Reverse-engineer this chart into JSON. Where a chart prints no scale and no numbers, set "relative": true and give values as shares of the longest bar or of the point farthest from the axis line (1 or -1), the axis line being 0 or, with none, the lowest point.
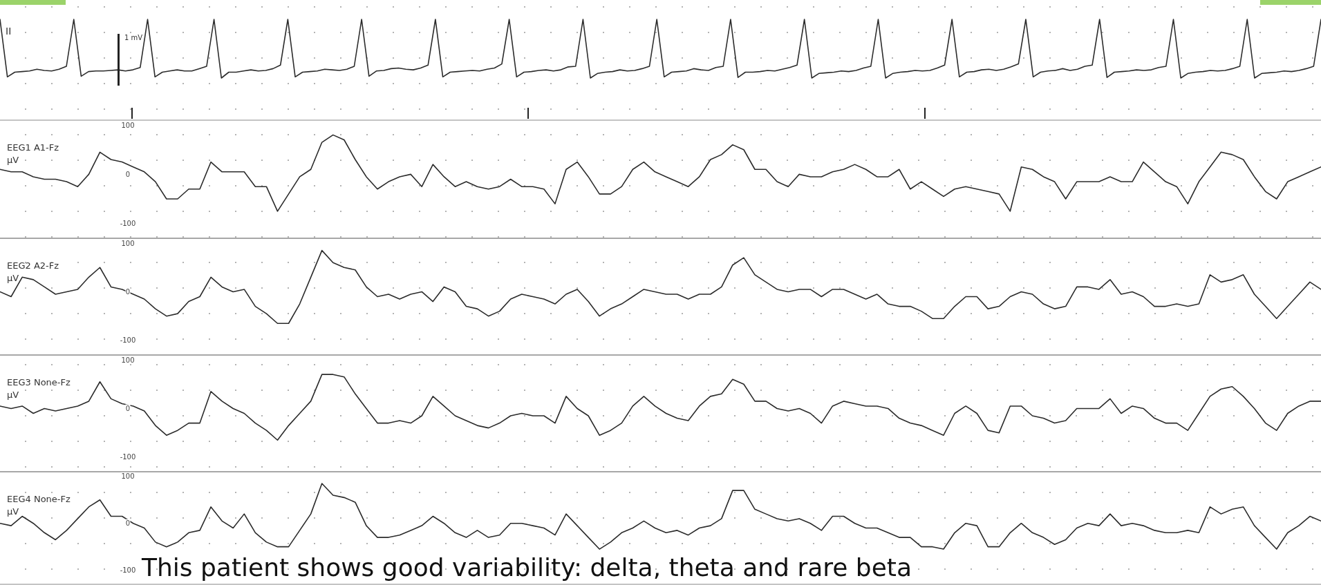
{
  "chart_data": [
    {
      "type": "line",
      "title": "II",
      "relative": true,
      "tick_labels": false,
      "color": "#2b2b2b",
      "annotations": [
        "1 mV"
      ],
      "categories": [
        null,
        null,
        null,
        null,
        null,
        null,
        null,
        null,
        null,
        null,
        null,
        null,
        null,
        null,
        null,
        null,
        null,
        null,
        null,
        null,
        null,
        null,
        null,
        null,
        null,
        null,
        null,
        null,
        null,
        null,
        null,
        null,
        null,
        null,
        null,
        null,
        null,
        null,
        null,
        null,
        null,
        null,
        null,
        null,
        null,
        null,
        null,
        null,
        null,
        null,
        null,
        null,
        null,
        null,
        null,
        null,
        null,
        null,
        null,
        null,
        null,
        null,
        null,
        null,
        null,
        null,
        null,
        null,
        null,
        null,
        null,
        null,
        null,
        null,
        null,
        null,
        null,
        null,
        null,
        null,
        null,
        null,
        null,
        null,
        null,
        null,
        null,
        null,
        null,
        null,
        null,
        null,
        null,
        null,
        null,
        null,
        null,
        null,
        null,
        null,
        null,
        null,
        null,
        null,
        null,
        null,
        null,
        null,
        null,
        null,
        null,
        null,
        null,
        null,
        null,
        null,
        null,
        null,
        null,
        null,
        null,
        null,
        null,
        null,
        null,
        null,
        null,
        null,
        null,
        null,
        null,
        null,
        null,
        null,
        null,
        null,
        null,
        null,
        null,
        null,
        null,
        null,
        null,
        null,
        null,
        null,
        null,
        null,
        null,
        null,
        null,
        null,
        null,
        null,
        null,
        null,
        null,
        null,
        null,
        null,
        null,
        null,
        null,
        null,
        null,
        null,
        null,
        null,
        null,
        null,
        null,
        null,
        null,
        null,
        null,
        null,
        null,
        null,
        null,
        null
      ],
      "values": [
        1,
        0.02,
        0.1,
        0.11,
        0.12,
        0.15,
        0.13,
        0.12,
        0.15,
        0.2,
        1,
        0.03,
        0.11,
        0.12,
        0.12,
        0.13,
        0.14,
        0.12,
        0.14,
        0.18,
        1,
        0.02,
        0.1,
        0.12,
        0.14,
        0.12,
        0.12,
        0.16,
        0.2,
        1,
        0,
        0.1,
        0.1,
        0.12,
        0.14,
        0.12,
        0.13,
        0.16,
        0.22,
        1,
        0.02,
        0.1,
        0.11,
        0.12,
        0.15,
        0.14,
        0.13,
        0.15,
        0.2,
        1,
        0.03,
        0.12,
        0.13,
        0.16,
        0.17,
        0.15,
        0.14,
        0.17,
        0.22,
        1,
        0.02,
        0.1,
        0.11,
        0.12,
        0.13,
        0.12,
        0.15,
        0.17,
        0.24,
        1,
        0.02,
        0.1,
        0.11,
        0.13,
        0.14,
        0.12,
        0.14,
        0.19,
        0.2,
        1,
        0,
        0.08,
        0.1,
        0.11,
        0.14,
        0.12,
        0.13,
        0.16,
        0.2,
        1,
        0.02,
        0.1,
        0.11,
        0.12,
        0.16,
        0.14,
        0.13,
        0.18,
        0.2,
        1,
        0.01,
        0.1,
        0.1,
        0.11,
        0.13,
        0.12,
        0.15,
        0.18,
        0.22,
        1,
        0,
        0.08,
        0.09,
        0.1,
        0.12,
        0.11,
        0.13,
        0.17,
        0.2,
        1,
        0,
        0.08,
        0.1,
        0.11,
        0.13,
        0.12,
        0.13,
        0.17,
        0.22,
        1,
        0.02,
        0.1,
        0.11,
        0.14,
        0.15,
        0.13,
        0.15,
        0.19,
        0.24,
        1,
        0.02,
        0.1,
        0.12,
        0.13,
        0.16,
        0.13,
        0.15,
        0.2,
        0.22,
        1,
        0.01,
        0.1,
        0.11,
        0.12,
        0.14,
        0.13,
        0.14,
        0.18,
        0.2,
        1,
        0,
        0.08,
        0.1,
        0.11,
        0.13,
        0.12,
        0.13,
        0.16,
        0.2,
        1,
        0,
        0.08,
        0.09,
        0.1,
        0.12,
        0.11,
        0.13,
        0.16,
        0.2,
        1
      ]
    },
    {
      "type": "line",
      "title": "EEG1 A1-Fz",
      "ylabel": "µV",
      "ylim": [
        -130,
        110
      ],
      "yticks": [
        100,
        0,
        -100
      ],
      "tick_labels": "y",
      "color": "#2b2b2b",
      "categories": [
        null,
        null,
        null,
        null,
        null,
        null,
        null,
        null,
        null,
        null,
        null,
        null,
        null,
        null,
        null,
        null,
        null,
        null,
        null,
        null,
        null,
        null,
        null,
        null,
        null,
        null,
        null,
        null,
        null,
        null,
        null,
        null,
        null,
        null,
        null,
        null,
        null,
        null,
        null,
        null,
        null,
        null,
        null,
        null,
        null,
        null,
        null,
        null,
        null,
        null,
        null,
        null,
        null,
        null,
        null,
        null,
        null,
        null,
        null,
        null,
        null,
        null,
        null,
        null,
        null,
        null,
        null,
        null,
        null,
        null,
        null,
        null,
        null,
        null,
        null,
        null,
        null,
        null,
        null,
        null,
        null,
        null,
        null,
        null,
        null,
        null,
        null,
        null,
        null,
        null,
        null,
        null,
        null,
        null,
        null,
        null,
        null,
        null,
        null,
        null,
        null,
        null,
        null,
        null,
        null,
        null,
        null,
        null,
        null,
        null,
        null,
        null,
        null,
        null,
        null,
        null,
        null,
        null,
        null,
        null
      ],
      "values": [
        10,
        5,
        5,
        -5,
        -10,
        -10,
        -15,
        -25,
        0,
        45,
        30,
        25,
        15,
        5,
        -15,
        -50,
        -50,
        -30,
        -30,
        25,
        5,
        5,
        5,
        -25,
        -25,
        -75,
        -40,
        -5,
        10,
        65,
        80,
        70,
        30,
        -5,
        -30,
        -15,
        -5,
        0,
        -25,
        20,
        -5,
        -25,
        -15,
        -25,
        -30,
        -25,
        -10,
        -25,
        -25,
        -30,
        -60,
        10,
        25,
        -5,
        -40,
        -40,
        -25,
        10,
        25,
        5,
        -5,
        -15,
        -25,
        -5,
        30,
        40,
        60,
        50,
        10,
        10,
        -15,
        -25,
        0,
        -5,
        -5,
        5,
        10,
        20,
        10,
        -5,
        -5,
        10,
        -30,
        -15,
        -30,
        -45,
        -30,
        -25,
        -30,
        -35,
        -40,
        -75,
        15,
        10,
        -5,
        -15,
        -50,
        -15,
        -15,
        -15,
        -5,
        -15,
        -15,
        25,
        5,
        -15,
        -25,
        -60,
        -15,
        15,
        45,
        40,
        30,
        -5,
        -35,
        -50,
        -15,
        -5,
        5,
        15
      ]
    },
    {
      "type": "line",
      "title": "EEG2 A2-Fz",
      "ylabel": "µV",
      "ylim": [
        -130,
        110
      ],
      "yticks": [
        100,
        0,
        -100
      ],
      "tick_labels": "y",
      "color": "#2b2b2b",
      "categories": [
        null,
        null,
        null,
        null,
        null,
        null,
        null,
        null,
        null,
        null,
        null,
        null,
        null,
        null,
        null,
        null,
        null,
        null,
        null,
        null,
        null,
        null,
        null,
        null,
        null,
        null,
        null,
        null,
        null,
        null,
        null,
        null,
        null,
        null,
        null,
        null,
        null,
        null,
        null,
        null,
        null,
        null,
        null,
        null,
        null,
        null,
        null,
        null,
        null,
        null,
        null,
        null,
        null,
        null,
        null,
        null,
        null,
        null,
        null,
        null,
        null,
        null,
        null,
        null,
        null,
        null,
        null,
        null,
        null,
        null,
        null,
        null,
        null,
        null,
        null,
        null,
        null,
        null,
        null,
        null,
        null,
        null,
        null,
        null,
        null,
        null,
        null,
        null,
        null,
        null,
        null,
        null,
        null,
        null,
        null,
        null,
        null,
        null,
        null,
        null,
        null,
        null,
        null,
        null,
        null,
        null,
        null,
        null,
        null,
        null,
        null,
        null,
        null,
        null,
        null,
        null,
        null,
        null,
        null,
        null
      ],
      "values": [
        0,
        -10,
        30,
        25,
        10,
        -5,
        0,
        5,
        30,
        50,
        10,
        5,
        -5,
        -15,
        -35,
        -50,
        -45,
        -20,
        -10,
        30,
        10,
        0,
        5,
        -30,
        -45,
        -65,
        -65,
        -25,
        30,
        85,
        60,
        50,
        45,
        10,
        -10,
        -5,
        -15,
        -5,
        0,
        -20,
        10,
        0,
        -30,
        -35,
        -50,
        -40,
        -15,
        -5,
        -10,
        -15,
        -25,
        -5,
        5,
        -20,
        -50,
        -35,
        -25,
        -10,
        5,
        0,
        -5,
        -5,
        -15,
        -5,
        -5,
        10,
        55,
        70,
        35,
        20,
        5,
        0,
        5,
        5,
        -10,
        5,
        5,
        -5,
        -15,
        -5,
        -25,
        -30,
        -30,
        -40,
        -55,
        -55,
        -30,
        -10,
        -10,
        -35,
        -30,
        -10,
        0,
        -5,
        -25,
        -35,
        -30,
        10,
        10,
        5,
        25,
        -5,
        0,
        -10,
        -30,
        -30,
        -25,
        -30,
        -25,
        35,
        20,
        25,
        35,
        -5,
        -30,
        -55,
        -30,
        -5,
        20,
        5
      ]
    },
    {
      "type": "line",
      "title": "EEG3 None-Fz",
      "ylabel": "µV",
      "ylim": [
        -130,
        110
      ],
      "yticks": [
        100,
        0,
        -100
      ],
      "tick_labels": "y",
      "color": "#2b2b2b",
      "categories": [
        null,
        null,
        null,
        null,
        null,
        null,
        null,
        null,
        null,
        null,
        null,
        null,
        null,
        null,
        null,
        null,
        null,
        null,
        null,
        null,
        null,
        null,
        null,
        null,
        null,
        null,
        null,
        null,
        null,
        null,
        null,
        null,
        null,
        null,
        null,
        null,
        null,
        null,
        null,
        null,
        null,
        null,
        null,
        null,
        null,
        null,
        null,
        null,
        null,
        null,
        null,
        null,
        null,
        null,
        null,
        null,
        null,
        null,
        null,
        null,
        null,
        null,
        null,
        null,
        null,
        null,
        null,
        null,
        null,
        null,
        null,
        null,
        null,
        null,
        null,
        null,
        null,
        null,
        null,
        null,
        null,
        null,
        null,
        null,
        null,
        null,
        null,
        null,
        null,
        null,
        null,
        null,
        null,
        null,
        null,
        null,
        null,
        null,
        null,
        null,
        null,
        null,
        null,
        null,
        null,
        null,
        null,
        null,
        null,
        null,
        null,
        null,
        null,
        null,
        null,
        null,
        null,
        null,
        null,
        null
      ],
      "values": [
        5,
        0,
        5,
        -10,
        0,
        -5,
        0,
        5,
        15,
        55,
        20,
        10,
        5,
        -5,
        -35,
        -55,
        -45,
        -30,
        -30,
        35,
        15,
        0,
        -10,
        -30,
        -45,
        -65,
        -35,
        -10,
        15,
        70,
        70,
        65,
        30,
        0,
        -30,
        -30,
        -25,
        -30,
        -15,
        25,
        5,
        -15,
        -25,
        -35,
        -40,
        -30,
        -15,
        -10,
        -15,
        -15,
        -30,
        25,
        0,
        -15,
        -55,
        -45,
        -30,
        5,
        25,
        5,
        -10,
        -20,
        -25,
        5,
        25,
        30,
        60,
        50,
        15,
        15,
        0,
        -5,
        0,
        -10,
        -30,
        5,
        15,
        10,
        5,
        5,
        0,
        -20,
        -30,
        -35,
        -45,
        -55,
        -10,
        5,
        -10,
        -45,
        -50,
        5,
        5,
        -15,
        -20,
        -30,
        -25,
        0,
        0,
        0,
        20,
        -10,
        5,
        0,
        -20,
        -30,
        -30,
        -45,
        -10,
        25,
        40,
        45,
        25,
        0,
        -30,
        -45,
        -10,
        5,
        15,
        15
      ]
    },
    {
      "type": "line",
      "title": "EEG4 None-Fz",
      "ylabel": "µV",
      "ylim": [
        -130,
        110
      ],
      "yticks": [
        100,
        0,
        -100
      ],
      "tick_labels": "y",
      "color": "#2b2b2b",
      "annotations": [
        "This patient shows good variability: delta, theta and rare beta"
      ],
      "categories": [
        null,
        null,
        null,
        null,
        null,
        null,
        null,
        null,
        null,
        null,
        null,
        null,
        null,
        null,
        null,
        null,
        null,
        null,
        null,
        null,
        null,
        null,
        null,
        null,
        null,
        null,
        null,
        null,
        null,
        null,
        null,
        null,
        null,
        null,
        null,
        null,
        null,
        null,
        null,
        null,
        null,
        null,
        null,
        null,
        null,
        null,
        null,
        null,
        null,
        null,
        null,
        null,
        null,
        null,
        null,
        null,
        null,
        null,
        null,
        null,
        null,
        null,
        null,
        null,
        null,
        null,
        null,
        null,
        null,
        null,
        null,
        null,
        null,
        null,
        null,
        null,
        null,
        null,
        null,
        null,
        null,
        null,
        null,
        null,
        null,
        null,
        null,
        null,
        null,
        null,
        null,
        null,
        null,
        null,
        null,
        null,
        null,
        null,
        null,
        null,
        null,
        null,
        null,
        null,
        null,
        null,
        null,
        null,
        null,
        null,
        null,
        null,
        null,
        null,
        null,
        null,
        null,
        null,
        null,
        null
      ],
      "values": [
        0,
        -5,
        15,
        0,
        -20,
        -35,
        -15,
        10,
        35,
        50,
        15,
        15,
        0,
        -10,
        -40,
        -50,
        -40,
        -20,
        -15,
        35,
        5,
        -10,
        20,
        -20,
        -40,
        -50,
        -50,
        -15,
        20,
        85,
        60,
        55,
        45,
        -5,
        -30,
        -30,
        -25,
        -15,
        -5,
        15,
        0,
        -20,
        -30,
        -15,
        -30,
        -25,
        0,
        0,
        -5,
        -10,
        -25,
        20,
        -5,
        -30,
        -55,
        -40,
        -20,
        -10,
        5,
        -10,
        -20,
        -15,
        -25,
        -10,
        -5,
        10,
        70,
        70,
        30,
        20,
        10,
        5,
        10,
        0,
        -15,
        15,
        15,
        0,
        -10,
        -10,
        -20,
        -30,
        -30,
        -50,
        -50,
        -55,
        -20,
        0,
        -5,
        -50,
        -50,
        -20,
        0,
        -20,
        -30,
        -45,
        -35,
        -10,
        0,
        -5,
        20,
        -5,
        0,
        -5,
        -15,
        -20,
        -20,
        -15,
        -20,
        35,
        20,
        30,
        35,
        -5,
        -30,
        -55,
        -20,
        -5,
        15,
        5
      ]
    }
  ]
}
